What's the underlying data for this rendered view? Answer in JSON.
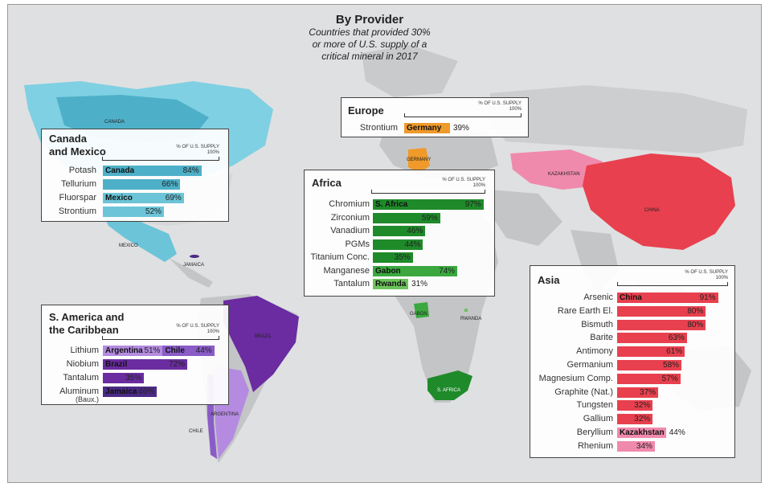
{
  "title": "By Provider",
  "subtitle": [
    "Countries that provided 30%",
    "or more of U.S. supply of a",
    "critical mineral in 2017"
  ],
  "scale_caption": "% OF U.S. SUPPLY",
  "scale_max": "100%",
  "colors": {
    "canada": "#4eb0c8",
    "canada_light": "#7fd0e2",
    "mexico": "#6cc4d8",
    "brazil": "#6a2ca0",
    "argentina": "#b48be0",
    "chile": "#8a5cc8",
    "jamaica": "#4b2a85",
    "africa_dark": "#1f8a2a",
    "africa_mid": "#3aa83f",
    "africa_light": "#6cc45a",
    "china": "#e8404e",
    "kazakhstan": "#f08aac",
    "germany": "#ef9a2a",
    "ocean": "#dfe0e2",
    "land": "#c4c5c7"
  },
  "map_labels": {
    "canada": "CANADA",
    "mexico": "MEXICO",
    "jamaica": "JAMAICA",
    "brazil": "BRAZIL",
    "argentina": "ARGENTINA",
    "chile": "CHILE",
    "germany": "GERMANY",
    "kazakhstan": "KAZAKHSTAN",
    "china": "CHINA",
    "gabon": "GABON",
    "rwanda": "RWANDA",
    "s_africa": "S. AFRICA"
  },
  "panels": {
    "canada_mexico": {
      "title": [
        "Canada",
        "and Mexico"
      ],
      "rows": [
        {
          "mineral": "Potash",
          "country": "Canada",
          "pct": "84%",
          "value": 84,
          "color": "#4eb0c8"
        },
        {
          "mineral": "Tellurium",
          "country": "",
          "pct": "66%",
          "value": 66,
          "color": "#4eb0c8"
        },
        {
          "mineral": "Fluorspar",
          "country": "Mexico",
          "pct": "69%",
          "value": 69,
          "color": "#6cc4d8"
        },
        {
          "mineral": "Strontium",
          "country": "",
          "pct": "52%",
          "value": 52,
          "color": "#6cc4d8"
        }
      ]
    },
    "europe": {
      "title": "Europe",
      "rows": [
        {
          "mineral": "Strontium",
          "country": "Germany",
          "pct": "39%",
          "value": 39,
          "color": "#ef9a2a"
        }
      ]
    },
    "africa": {
      "title": "Africa",
      "rows": [
        {
          "mineral": "Chromium",
          "country": "S. Africa",
          "pct": "97%",
          "value": 97,
          "color": "#1f8a2a"
        },
        {
          "mineral": "Zirconium",
          "country": "",
          "pct": "59%",
          "value": 59,
          "color": "#1f8a2a"
        },
        {
          "mineral": "Vanadium",
          "country": "",
          "pct": "46%",
          "value": 46,
          "color": "#1f8a2a"
        },
        {
          "mineral": "PGMs",
          "country": "",
          "pct": "44%",
          "value": 44,
          "color": "#1f8a2a"
        },
        {
          "mineral": "Titanium Conc.",
          "country": "",
          "pct": "35%",
          "value": 35,
          "color": "#1f8a2a"
        },
        {
          "mineral": "Manganese",
          "country": "Gabon",
          "pct": "74%",
          "value": 74,
          "color": "#3aa83f"
        },
        {
          "mineral": "Tantalum",
          "country": "Rwanda",
          "pct": "31%",
          "value": 31,
          "color": "#6cc45a"
        }
      ]
    },
    "s_america": {
      "title": [
        "S. America and",
        "the Caribbean"
      ],
      "rows": [
        {
          "mineral": "Lithium",
          "country": "Argentina",
          "pct": "51%",
          "value": 51,
          "color": "#b48be0",
          "second_country": "Chile",
          "second_pct": "44%",
          "second_value": 44,
          "second_color": "#8a5cc8"
        },
        {
          "mineral": "Niobium",
          "country": "Brazil",
          "pct": "72%",
          "value": 72,
          "color": "#6a2ca0"
        },
        {
          "mineral": "Tantalum",
          "country": "",
          "pct": "35%",
          "value": 35,
          "color": "#6a2ca0"
        },
        {
          "mineral": "Aluminum",
          "mineral2": "(Baux.)",
          "country": "Jamaica",
          "pct": "46%",
          "value": 46,
          "color": "#4b2a85"
        }
      ]
    },
    "asia": {
      "title": "Asia",
      "rows": [
        {
          "mineral": "Arsenic",
          "country": "China",
          "pct": "91%",
          "value": 91,
          "color": "#e8404e"
        },
        {
          "mineral": "Rare Earth El.",
          "country": "",
          "pct": "80%",
          "value": 80,
          "color": "#e8404e"
        },
        {
          "mineral": "Bismuth",
          "country": "",
          "pct": "80%",
          "value": 80,
          "color": "#e8404e"
        },
        {
          "mineral": "Barite",
          "country": "",
          "pct": "63%",
          "value": 63,
          "color": "#e8404e"
        },
        {
          "mineral": "Antimony",
          "country": "",
          "pct": "61%",
          "value": 61,
          "color": "#e8404e"
        },
        {
          "mineral": "Germanium",
          "country": "",
          "pct": "58%",
          "value": 58,
          "color": "#e8404e"
        },
        {
          "mineral": "Magnesium Comp.",
          "country": "",
          "pct": "57%",
          "value": 57,
          "color": "#e8404e"
        },
        {
          "mineral": "Graphite (Nat.)",
          "country": "",
          "pct": "37%",
          "value": 37,
          "color": "#e8404e"
        },
        {
          "mineral": "Tungsten",
          "country": "",
          "pct": "32%",
          "value": 32,
          "color": "#e8404e"
        },
        {
          "mineral": "Gallium",
          "country": "",
          "pct": "32%",
          "value": 32,
          "color": "#e8404e"
        },
        {
          "mineral": "Beryllium",
          "country": "Kazakhstan",
          "pct": "44%",
          "value": 44,
          "color": "#f08aac"
        },
        {
          "mineral": "Rhenium",
          "country": "",
          "pct": "34%",
          "value": 34,
          "color": "#f08aac"
        }
      ]
    }
  }
}
